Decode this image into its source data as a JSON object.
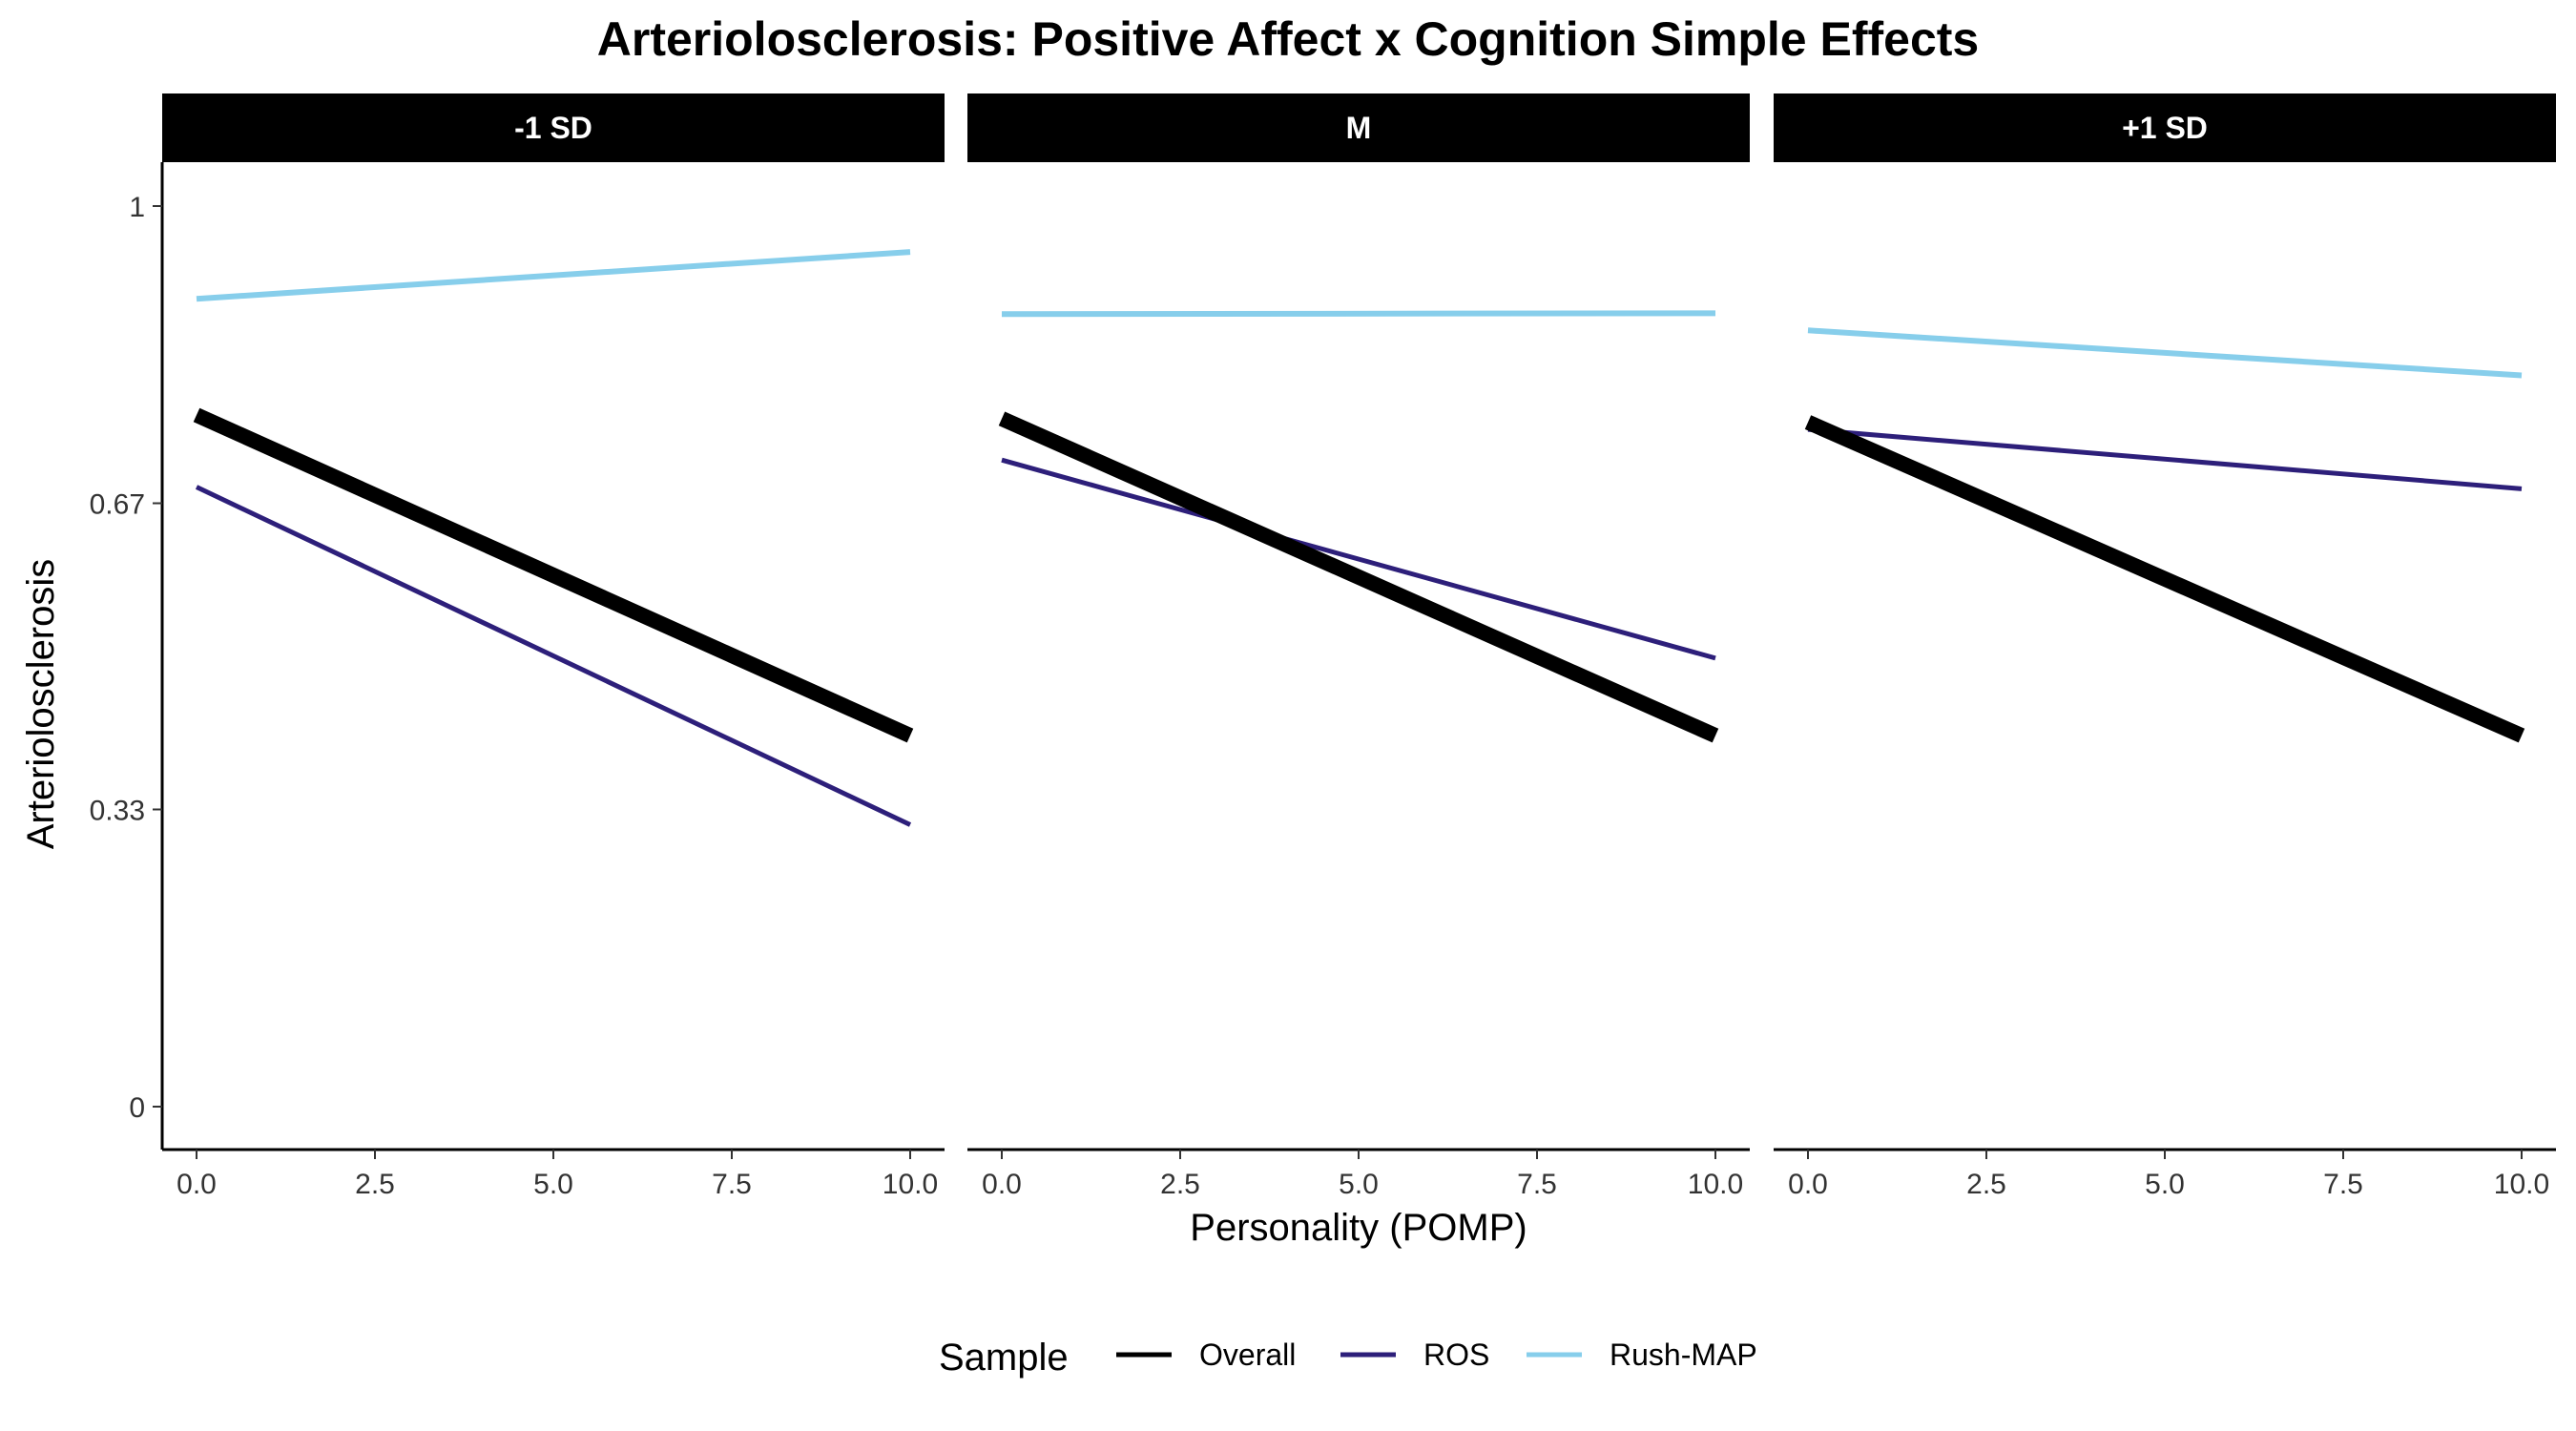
{
  "chart_data": {
    "type": "line",
    "title": "Arteriolosclerosis: Positive Affect x Cognition Simple Effects",
    "xlabel": "Personality (POMP)",
    "ylabel": "Arteriolosclerosis",
    "xlim": [
      0,
      10
    ],
    "ylim": [
      0,
      1
    ],
    "x_ticks": [
      "0.0",
      "2.5",
      "5.0",
      "7.5",
      "10.0"
    ],
    "y_ticks": [
      "0",
      "0.33",
      "0.67",
      "1"
    ],
    "y_tick_values": [
      0,
      0.33,
      0.67,
      1
    ],
    "grid": false,
    "legend": {
      "title": "Sample",
      "position": "bottom",
      "entries": [
        "Overall",
        "ROS",
        "Rush-MAP"
      ]
    },
    "series_styles": [
      {
        "name": "Overall",
        "color": "#000000"
      },
      {
        "name": "ROS",
        "color": "#2D1F7A"
      },
      {
        "name": "Rush-MAP",
        "color": "#87CEEB"
      }
    ],
    "panels": [
      {
        "label": "-1 SD",
        "series": [
          {
            "name": "Overall",
            "x": [
              0,
              10
            ],
            "values": [
              0.768,
              0.412
            ]
          },
          {
            "name": "ROS",
            "x": [
              0,
              10
            ],
            "values": [
              0.688,
              0.313
            ]
          },
          {
            "name": "Rush-MAP",
            "x": [
              0,
              10
            ],
            "values": [
              0.897,
              0.949
            ]
          }
        ]
      },
      {
        "label": "M",
        "series": [
          {
            "name": "Overall",
            "x": [
              0,
              10
            ],
            "values": [
              0.764,
              0.412
            ]
          },
          {
            "name": "ROS",
            "x": [
              0,
              10
            ],
            "values": [
              0.718,
              0.498
            ]
          },
          {
            "name": "Rush-MAP",
            "x": [
              0,
              10
            ],
            "values": [
              0.88,
              0.881
            ]
          }
        ]
      },
      {
        "label": "+1 SD",
        "series": [
          {
            "name": "Overall",
            "x": [
              0,
              10
            ],
            "values": [
              0.76,
              0.412
            ]
          },
          {
            "name": "ROS",
            "x": [
              0,
              10
            ],
            "values": [
              0.752,
              0.686
            ]
          },
          {
            "name": "Rush-MAP",
            "x": [
              0,
              10
            ],
            "values": [
              0.862,
              0.812
            ]
          }
        ]
      }
    ]
  }
}
